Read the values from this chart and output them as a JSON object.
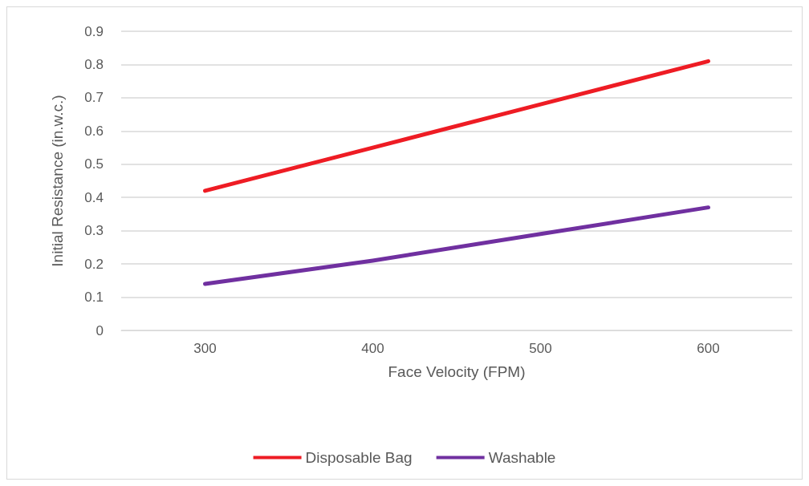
{
  "chart_data": {
    "type": "line",
    "xlabel": "Face Velocity (FPM)",
    "ylabel": "Initial Resistance (in.w.c.)",
    "categories": [
      "300",
      "400",
      "500",
      "600"
    ],
    "series": [
      {
        "name": "Disposable Bag",
        "color": "#ee1c24",
        "values": [
          0.42,
          0.55,
          0.68,
          0.81
        ]
      },
      {
        "name": "Washable",
        "color": "#7030a0",
        "values": [
          0.14,
          0.21,
          0.29,
          0.37
        ]
      }
    ],
    "ylim": [
      0,
      0.9
    ],
    "yticks": [
      0,
      0.1,
      0.2,
      0.3,
      0.4,
      0.5,
      0.6,
      0.7,
      0.8,
      0.9
    ],
    "grid": "y",
    "legend": "bottom",
    "marker": "none",
    "line_style": "solid"
  }
}
